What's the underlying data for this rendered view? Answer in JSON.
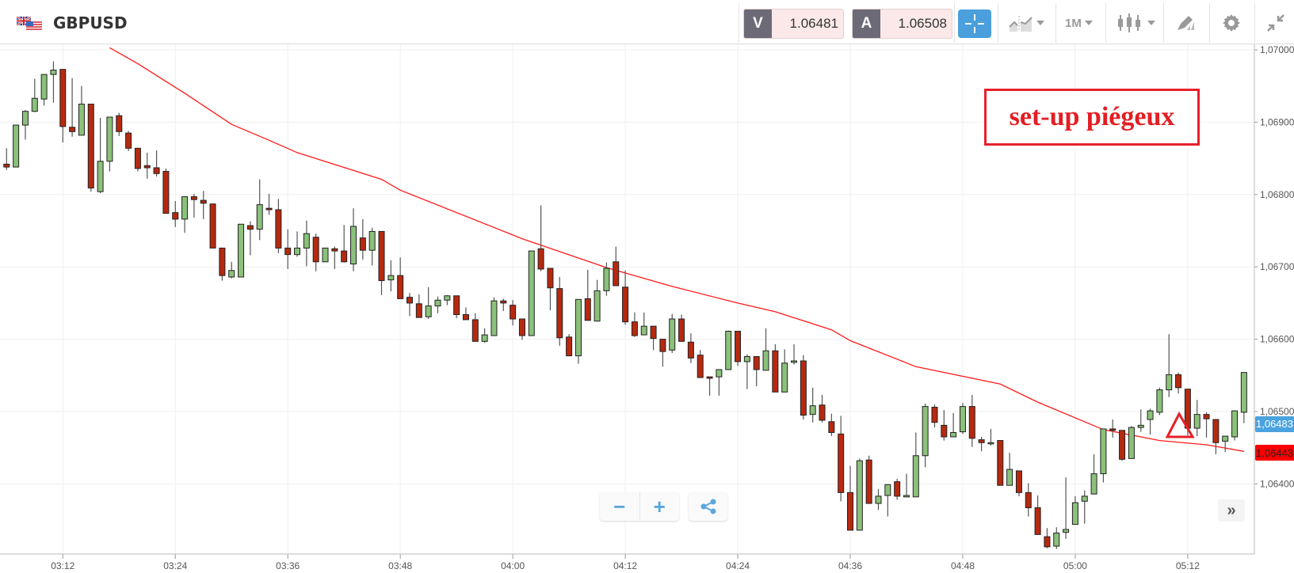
{
  "header": {
    "symbol": "GBPUSD",
    "flag_icon": "gb-us-flag-icon",
    "bid": {
      "label": "V",
      "value": "1.06481"
    },
    "ask": {
      "label": "A",
      "value": "1.06508"
    },
    "tools": {
      "crosshair": "crosshair-icon",
      "chart_type": "line-chart-icon",
      "timeframe": "1M",
      "candles": "candlestick-icon",
      "draw": "pencil-icon",
      "settings": "gear-icon",
      "fullscreen": "compress-icon"
    }
  },
  "controls": {
    "zoom_out": "−",
    "zoom_in": "+",
    "share": "share-icon",
    "scroll_right": "»"
  },
  "annotation": {
    "text": "set-up piégeux",
    "marker": "triangle-icon",
    "marker_time": "05:11"
  },
  "colors": {
    "up": "#8bc17a",
    "down": "#b7290f",
    "ma": "#ff1a1a",
    "bid_tag": "#4aa3df",
    "ma_tag": "#ff0000",
    "annotation": "#e31e24",
    "accent": "#4a9fdc"
  },
  "chart_data": {
    "type": "candlestick",
    "interval": "1M",
    "ylim": [
      1.063,
      1.07
    ],
    "grid": true,
    "x_ticks": [
      "03:12",
      "03:24",
      "03:36",
      "03:48",
      "04:00",
      "04:12",
      "04:24",
      "04:36",
      "04:48",
      "05:00",
      "05:12"
    ],
    "y_ticks": [
      {
        "value": 1.07,
        "label": "1,07000"
      },
      {
        "value": 1.069,
        "label": "1,06900"
      },
      {
        "value": 1.068,
        "label": "1,06800"
      },
      {
        "value": 1.067,
        "label": "1,06700"
      },
      {
        "value": 1.066,
        "label": "1,06600"
      },
      {
        "value": 1.065,
        "label": "1,06500"
      },
      {
        "value": 1.064,
        "label": "1,06400"
      }
    ],
    "price_tags": [
      {
        "value": 1.06483,
        "label": "1,06483",
        "color": "#4aa3df"
      },
      {
        "value": 1.06443,
        "label": "1,06443",
        "color": "#ff0000"
      }
    ],
    "candles_columns": [
      "time",
      "open",
      "high",
      "low",
      "close"
    ],
    "candles": [
      [
        "03:06",
        1.06842,
        1.06864,
        1.06834,
        1.06838
      ],
      [
        "03:07",
        1.06838,
        1.06896,
        1.06838,
        1.06896
      ],
      [
        "03:08",
        1.06896,
        1.06917,
        1.06876,
        1.06915
      ],
      [
        "03:09",
        1.06915,
        1.0696,
        1.06914,
        1.06933
      ],
      [
        "03:10",
        1.06932,
        1.06966,
        1.06923,
        1.06966
      ],
      [
        "03:11",
        1.06966,
        1.06984,
        1.06927,
        1.06972
      ],
      [
        "03:12",
        1.06973,
        1.06973,
        1.06872,
        1.06894
      ],
      [
        "03:13",
        1.06893,
        1.06961,
        1.0688,
        1.06887
      ],
      [
        "03:14",
        1.06882,
        1.0695,
        1.06882,
        1.06925
      ],
      [
        "03:15",
        1.06925,
        1.06925,
        1.06804,
        1.06809
      ],
      [
        "03:16",
        1.06804,
        1.06906,
        1.06802,
        1.06846
      ],
      [
        "03:17",
        1.06846,
        1.06907,
        1.06832,
        1.06907
      ],
      [
        "03:18",
        1.06909,
        1.06913,
        1.06881,
        1.06887
      ],
      [
        "03:19",
        1.06885,
        1.06888,
        1.0686,
        1.06864
      ],
      [
        "03:20",
        1.06864,
        1.06864,
        1.06832,
        1.06836
      ],
      [
        "03:21",
        1.0684,
        1.06858,
        1.06822,
        1.06837
      ],
      [
        "03:22",
        1.06837,
        1.06861,
        1.06825,
        1.06829
      ],
      [
        "03:23",
        1.06832,
        1.06836,
        1.06774,
        1.06774
      ],
      [
        "03:24",
        1.06775,
        1.06791,
        1.06755,
        1.06766
      ],
      [
        "03:25",
        1.06766,
        1.06797,
        1.06747,
        1.06797
      ],
      [
        "03:26",
        1.06797,
        1.06801,
        1.06768,
        1.06793
      ],
      [
        "03:27",
        1.06792,
        1.06805,
        1.06766,
        1.06788
      ],
      [
        "03:28",
        1.06787,
        1.06787,
        1.06726,
        1.06726
      ],
      [
        "03:29",
        1.06726,
        1.06726,
        1.06681,
        1.06688
      ],
      [
        "03:30",
        1.06686,
        1.06707,
        1.06684,
        1.06695
      ],
      [
        "03:31",
        1.06686,
        1.06759,
        1.06686,
        1.06759
      ],
      [
        "03:32",
        1.06757,
        1.06763,
        1.06716,
        1.06752
      ],
      [
        "03:33",
        1.06752,
        1.06821,
        1.06737,
        1.06786
      ],
      [
        "03:34",
        1.06781,
        1.06801,
        1.06772,
        1.06779
      ],
      [
        "03:35",
        1.06779,
        1.06794,
        1.06719,
        1.06726
      ],
      [
        "03:36",
        1.06726,
        1.06752,
        1.06697,
        1.06717
      ],
      [
        "03:37",
        1.06717,
        1.06749,
        1.06714,
        1.06726
      ],
      [
        "03:38",
        1.06726,
        1.06764,
        1.06701,
        1.06746
      ],
      [
        "03:39",
        1.06741,
        1.06746,
        1.06694,
        1.06707
      ],
      [
        "03:40",
        1.06707,
        1.06726,
        1.06707,
        1.06726
      ],
      [
        "03:41",
        1.06725,
        1.06728,
        1.06697,
        1.06722
      ],
      [
        "03:42",
        1.06722,
        1.06758,
        1.06706,
        1.06707
      ],
      [
        "03:43",
        1.06704,
        1.06781,
        1.06694,
        1.06756
      ],
      [
        "03:44",
        1.0674,
        1.06766,
        1.0671,
        1.06723
      ],
      [
        "03:45",
        1.06723,
        1.06754,
        1.06702,
        1.06749
      ],
      [
        "03:46",
        1.06749,
        1.06749,
        1.06661,
        1.06681
      ],
      [
        "03:47",
        1.06682,
        1.06709,
        1.06666,
        1.06688
      ],
      [
        "03:48",
        1.06688,
        1.06713,
        1.06656,
        1.06656
      ],
      [
        "03:49",
        1.06658,
        1.06664,
        1.06632,
        1.0665
      ],
      [
        "03:50",
        1.06649,
        1.06662,
        1.0663,
        1.0663
      ],
      [
        "03:51",
        1.06631,
        1.06672,
        1.06628,
        1.06646
      ],
      [
        "03:52",
        1.06646,
        1.06659,
        1.06636,
        1.06654
      ],
      [
        "03:53",
        1.06654,
        1.06661,
        1.06647,
        1.0666
      ],
      [
        "03:54",
        1.0666,
        1.0666,
        1.06629,
        1.06634
      ],
      [
        "03:55",
        1.06634,
        1.06644,
        1.06627,
        1.06627
      ],
      [
        "03:56",
        1.06627,
        1.06636,
        1.06597,
        1.06597
      ],
      [
        "03:57",
        1.06597,
        1.06615,
        1.06595,
        1.06606
      ],
      [
        "03:58",
        1.06605,
        1.06658,
        1.06605,
        1.06653
      ],
      [
        "03:59",
        1.06653,
        1.06656,
        1.06639,
        1.0665
      ],
      [
        "04:00",
        1.06647,
        1.06654,
        1.06619,
        1.06628
      ],
      [
        "04:01",
        1.06628,
        1.06628,
        1.06599,
        1.06605
      ],
      [
        "04:02",
        1.06605,
        1.06722,
        1.06605,
        1.06722
      ],
      [
        "04:03",
        1.06725,
        1.06785,
        1.06694,
        1.06697
      ],
      [
        "04:04",
        1.06698,
        1.06698,
        1.0664,
        1.06671
      ],
      [
        "04:05",
        1.0667,
        1.06686,
        1.06591,
        1.06602
      ],
      [
        "04:06",
        1.06603,
        1.06607,
        1.06577,
        1.06577
      ],
      [
        "04:07",
        1.06577,
        1.06655,
        1.06566,
        1.06655
      ],
      [
        "04:08",
        1.06656,
        1.06696,
        1.06626,
        1.06626
      ],
      [
        "04:09",
        1.06625,
        1.06682,
        1.06625,
        1.06667
      ],
      [
        "04:10",
        1.06667,
        1.06706,
        1.0666,
        1.06698
      ],
      [
        "04:11",
        1.06707,
        1.06728,
        1.06674,
        1.06674
      ],
      [
        "04:12",
        1.06672,
        1.06695,
        1.0662,
        1.06624
      ],
      [
        "04:13",
        1.06624,
        1.06637,
        1.06603,
        1.06605
      ],
      [
        "04:14",
        1.06606,
        1.06637,
        1.06606,
        1.06618
      ],
      [
        "04:15",
        1.06618,
        1.06618,
        1.06585,
        1.06601
      ],
      [
        "04:16",
        1.066,
        1.066,
        1.06562,
        1.06583
      ],
      [
        "04:17",
        1.06585,
        1.06635,
        1.06581,
        1.06628
      ],
      [
        "04:18",
        1.06628,
        1.06634,
        1.06597,
        1.06597
      ],
      [
        "04:19",
        1.06596,
        1.06608,
        1.06567,
        1.06574
      ],
      [
        "04:20",
        1.06578,
        1.06585,
        1.06547,
        1.06547
      ],
      [
        "04:21",
        1.06548,
        1.06548,
        1.06522,
        1.06546
      ],
      [
        "04:22",
        1.06548,
        1.06558,
        1.06522,
        1.06558
      ],
      [
        "04:23",
        1.06558,
        1.06612,
        1.06558,
        1.06611
      ],
      [
        "04:24",
        1.06611,
        1.06611,
        1.06563,
        1.06569
      ],
      [
        "04:25",
        1.06569,
        1.06579,
        1.06531,
        1.06576
      ],
      [
        "04:26",
        1.06576,
        1.06576,
        1.06535,
        1.06558
      ],
      [
        "04:27",
        1.06557,
        1.06615,
        1.06557,
        1.06584
      ],
      [
        "04:28",
        1.06584,
        1.06593,
        1.06527,
        1.06527
      ],
      [
        "04:29",
        1.06527,
        1.06586,
        1.06527,
        1.06567
      ],
      [
        "04:30",
        1.06568,
        1.06593,
        1.06565,
        1.0657
      ],
      [
        "04:31",
        1.0657,
        1.06578,
        1.06489,
        1.06495
      ],
      [
        "04:32",
        1.06496,
        1.06533,
        1.06485,
        1.06508
      ],
      [
        "04:33",
        1.06509,
        1.06523,
        1.06485,
        1.06488
      ],
      [
        "04:34",
        1.06486,
        1.06497,
        1.06466,
        1.06471
      ],
      [
        "04:35",
        1.06469,
        1.06494,
        1.06376,
        1.06388
      ],
      [
        "04:36",
        1.06388,
        1.06425,
        1.06336,
        1.06336
      ],
      [
        "04:37",
        1.06336,
        1.06435,
        1.06336,
        1.06432
      ],
      [
        "04:38",
        1.06433,
        1.06439,
        1.06373,
        1.06373
      ],
      [
        "04:39",
        1.06373,
        1.06393,
        1.06364,
        1.06383
      ],
      [
        "04:40",
        1.06384,
        1.06399,
        1.06355,
        1.06399
      ],
      [
        "04:41",
        1.06403,
        1.06407,
        1.06378,
        1.06383
      ],
      [
        "04:42",
        1.06382,
        1.06414,
        1.06382,
        1.06384
      ],
      [
        "04:43",
        1.06382,
        1.06471,
        1.06382,
        1.06439
      ],
      [
        "04:44",
        1.06439,
        1.06511,
        1.06423,
        1.06507
      ],
      [
        "04:45",
        1.06506,
        1.0651,
        1.06478,
        1.06485
      ],
      [
        "04:46",
        1.06481,
        1.06502,
        1.0646,
        1.06465
      ],
      [
        "04:47",
        1.06465,
        1.06498,
        1.06465,
        1.06471
      ],
      [
        "04:48",
        1.06472,
        1.06512,
        1.06469,
        1.06507
      ],
      [
        "04:49",
        1.06507,
        1.06523,
        1.06451,
        1.06463
      ],
      [
        "04:50",
        1.06461,
        1.06465,
        1.06445,
        1.06457
      ],
      [
        "04:51",
        1.06456,
        1.06476,
        1.06453,
        1.06457
      ],
      [
        "04:52",
        1.0646,
        1.0646,
        1.06398,
        1.06398
      ],
      [
        "04:53",
        1.06398,
        1.06443,
        1.06398,
        1.0642
      ],
      [
        "04:54",
        1.06418,
        1.06418,
        1.06383,
        1.06388
      ],
      [
        "04:55",
        1.06388,
        1.06401,
        1.06355,
        1.06367
      ],
      [
        "04:56",
        1.06367,
        1.06384,
        1.0633,
        1.0633
      ],
      [
        "04:57",
        1.06327,
        1.06339,
        1.06311,
        1.06313
      ],
      [
        "04:58",
        1.06314,
        1.0634,
        1.0631,
        1.06332
      ],
      [
        "04:59",
        1.06333,
        1.06409,
        1.06324,
        1.06337
      ],
      [
        "05:00",
        1.06344,
        1.06383,
        1.06344,
        1.06374
      ],
      [
        "05:01",
        1.06376,
        1.06391,
        1.06345,
        1.06383
      ],
      [
        "05:02",
        1.06386,
        1.06441,
        1.06386,
        1.06414
      ],
      [
        "05:03",
        1.06414,
        1.06476,
        1.06402,
        1.06476
      ],
      [
        "05:04",
        1.06476,
        1.06489,
        1.06464,
        1.06474
      ],
      [
        "05:05",
        1.06474,
        1.06474,
        1.06432,
        1.06434
      ],
      [
        "05:06",
        1.06435,
        1.0648,
        1.06435,
        1.06478
      ],
      [
        "05:07",
        1.06478,
        1.06503,
        1.06472,
        1.06481
      ],
      [
        "05:08",
        1.06489,
        1.06504,
        1.06468,
        1.06501
      ],
      [
        "05:09",
        1.06499,
        1.06533,
        1.06495,
        1.0653
      ],
      [
        "05:10",
        1.0653,
        1.06607,
        1.0652,
        1.06551
      ],
      [
        "05:11",
        1.06551,
        1.06554,
        1.06525,
        1.06533
      ],
      [
        "05:12",
        1.06531,
        1.06531,
        1.06467,
        1.06477
      ],
      [
        "05:13",
        1.06477,
        1.06516,
        1.06466,
        1.06496
      ],
      [
        "05:14",
        1.06496,
        1.06499,
        1.06464,
        1.0649
      ],
      [
        "05:15",
        1.06489,
        1.06489,
        1.06441,
        1.06457
      ],
      [
        "05:16",
        1.06459,
        1.06466,
        1.06444,
        1.06466
      ],
      [
        "05:17",
        1.06465,
        1.06501,
        1.0646,
        1.06501
      ],
      [
        "05:18",
        1.06499,
        1.06554,
        1.06484,
        1.06554
      ]
    ],
    "moving_average": [
      [
        "03:17",
        1.07003
      ],
      [
        "03:20",
        1.06981
      ],
      [
        "03:25",
        1.0694
      ],
      [
        "03:30",
        1.06897
      ],
      [
        "03:34",
        1.06875
      ],
      [
        "03:37",
        1.06858
      ],
      [
        "03:46",
        1.06821
      ],
      [
        "03:48",
        1.06806
      ],
      [
        "04:01",
        1.06739
      ],
      [
        "04:10",
        1.06699
      ],
      [
        "04:17",
        1.06673
      ],
      [
        "04:24",
        1.0665
      ],
      [
        "04:28",
        1.06638
      ],
      [
        "04:34",
        1.06613
      ],
      [
        "04:36",
        1.06598
      ],
      [
        "04:43",
        1.06562
      ],
      [
        "04:52",
        1.06538
      ],
      [
        "04:56",
        1.06513
      ],
      [
        "05:03",
        1.06475
      ],
      [
        "05:09",
        1.0646
      ],
      [
        "05:14",
        1.06454
      ],
      [
        "05:18",
        1.06445
      ]
    ]
  }
}
